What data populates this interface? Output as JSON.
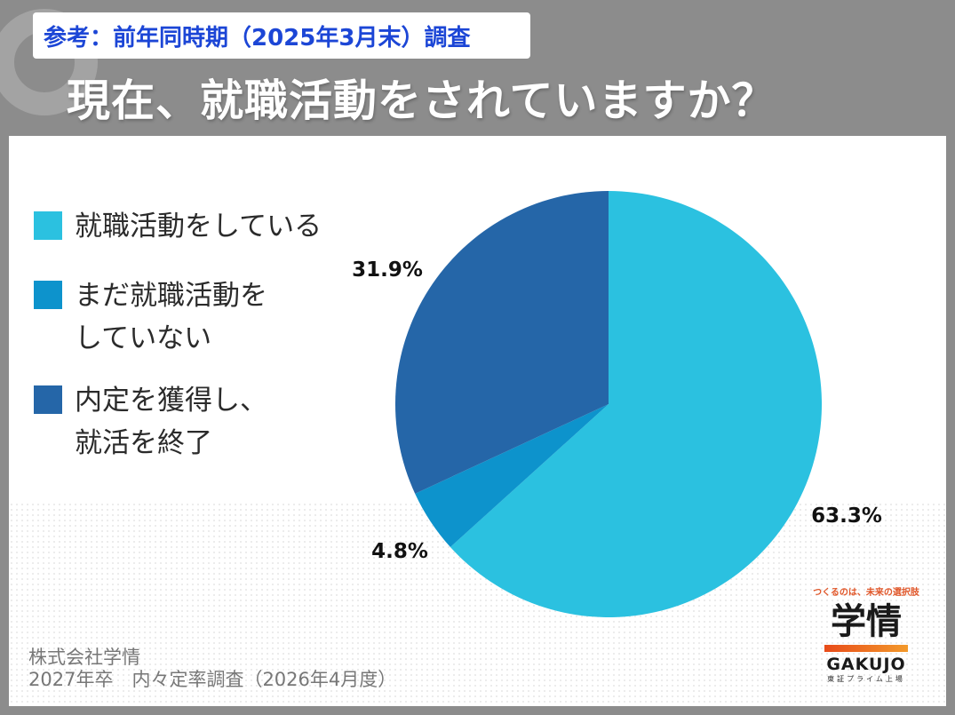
{
  "reference_badge": "参考：前年同時期（2025年3月末）調査",
  "question": "現在、就職活動をされていますか？",
  "colors": {
    "background": "#8c8c8c",
    "badge_text": "#1c46d6",
    "slice_active": "#2bc1e0",
    "slice_not_started": "#0d93cc",
    "slice_finished": "#2566a8"
  },
  "chart_data": {
    "type": "pie",
    "categories": [
      "就職活動をしている",
      "まだ就職活動をしていない",
      "内定を獲得し、就活を終了"
    ],
    "legend_labels": [
      "就職活動をしている",
      "まだ就職活動を\nしていない",
      "内定を獲得し、\n就活を終了"
    ],
    "values": [
      63.3,
      4.8,
      31.9
    ],
    "value_labels": [
      "63.3%",
      "4.8%",
      "31.9%"
    ],
    "colors": [
      "#2bc1e0",
      "#0d93cc",
      "#2566a8"
    ],
    "legend_position": "left"
  },
  "footer": {
    "company": "株式会社学情",
    "survey": "2027年卒　内々定率調査（2026年4月度）"
  },
  "logo": {
    "tagline": "つくるのは、未来の選択肢",
    "kanji": "学情",
    "name": "GAKUJO",
    "market": "東証プライム上場"
  }
}
